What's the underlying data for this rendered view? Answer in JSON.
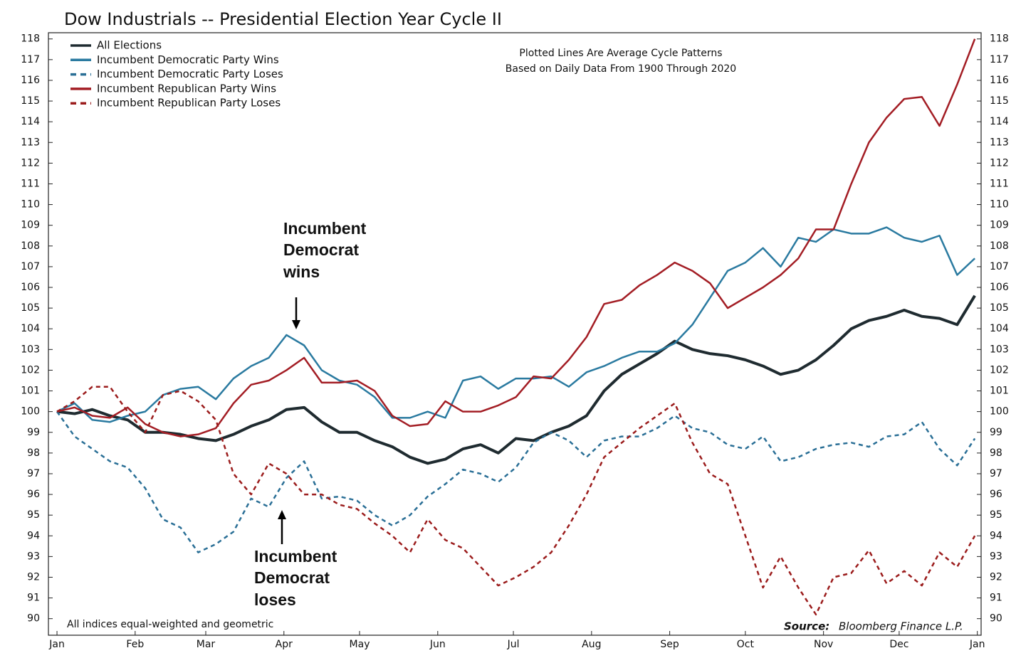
{
  "chart_data": {
    "type": "line",
    "title": "Dow Industrials -- Presidential Election Year Cycle II",
    "notes": [
      "Plotted Lines Are Average Cycle Patterns",
      "Based on Daily Data From 1900 Through 2020"
    ],
    "footnote": "All indices equal-weighted and geometric",
    "source_label": "Source:",
    "source": "Bloomberg Finance L.P.",
    "annotations": [
      {
        "lines": [
          "Incumbent",
          "Democrat",
          "wins"
        ]
      },
      {
        "lines": [
          "Incumbent",
          "Democrat",
          "loses"
        ]
      }
    ],
    "x": [
      0,
      7,
      14,
      21,
      28,
      35,
      42,
      49,
      56,
      63,
      70,
      77,
      84,
      91,
      98,
      105,
      112,
      119,
      126,
      133,
      140,
      147,
      154,
      161,
      168,
      175,
      182,
      189,
      196,
      203,
      210,
      217,
      224,
      231,
      238,
      245,
      252,
      259,
      266,
      273,
      280,
      287,
      294,
      301,
      308,
      315,
      322,
      329,
      336,
      343,
      350,
      357,
      364
    ],
    "xlim": [
      -3.4,
      366.5
    ],
    "xticks": [
      {
        "value": 0,
        "label": "Jan"
      },
      {
        "value": 31,
        "label": "Feb"
      },
      {
        "value": 59,
        "label": "Mar"
      },
      {
        "value": 90,
        "label": "Apr"
      },
      {
        "value": 120,
        "label": "May"
      },
      {
        "value": 151,
        "label": "Jun"
      },
      {
        "value": 181,
        "label": "Jul"
      },
      {
        "value": 212,
        "label": "Aug"
      },
      {
        "value": 243,
        "label": "Sep"
      },
      {
        "value": 273,
        "label": "Oct"
      },
      {
        "value": 304,
        "label": "Nov"
      },
      {
        "value": 334,
        "label": "Dec"
      },
      {
        "value": 365,
        "label": "Jan"
      }
    ],
    "ylim": [
      89.2,
      118.3
    ],
    "yticks": [
      90,
      91,
      92,
      93,
      94,
      95,
      96,
      97,
      98,
      99,
      100,
      101,
      102,
      103,
      104,
      105,
      106,
      107,
      108,
      109,
      110,
      111,
      112,
      113,
      114,
      115,
      116,
      117,
      118
    ],
    "series": [
      {
        "name": "All Elections",
        "color": "#1f2b30",
        "dashed": false,
        "width": 4,
        "values": [
          100,
          99.9,
          100.1,
          99.8,
          99.6,
          99.0,
          99.0,
          98.9,
          98.7,
          98.6,
          98.9,
          99.3,
          99.6,
          100.1,
          100.2,
          99.5,
          99.0,
          99.0,
          98.6,
          98.3,
          97.8,
          97.5,
          97.7,
          98.2,
          98.4,
          98.0,
          98.7,
          98.6,
          99.0,
          99.3,
          99.8,
          101.0,
          101.8,
          102.3,
          102.8,
          103.4,
          103.0,
          102.8,
          102.7,
          102.5,
          102.2,
          101.8,
          102.0,
          102.5,
          103.2,
          104.0,
          104.4,
          104.6,
          104.9,
          104.6,
          104.5,
          104.2,
          105.6
        ]
      },
      {
        "name": "Incumbent Democratic Party Wins",
        "color": "#2a7aa0",
        "dashed": false,
        "width": 2.5,
        "values": [
          100,
          100.4,
          99.6,
          99.5,
          99.8,
          100.0,
          100.8,
          101.1,
          101.2,
          100.6,
          101.6,
          102.2,
          102.6,
          103.7,
          103.2,
          102.0,
          101.5,
          101.3,
          100.7,
          99.7,
          99.7,
          100.0,
          99.7,
          101.5,
          101.7,
          101.1,
          101.6,
          101.6,
          101.7,
          101.2,
          101.9,
          102.2,
          102.6,
          102.9,
          102.9,
          103.3,
          104.2,
          105.5,
          106.8,
          107.2,
          107.9,
          107.0,
          108.4,
          108.2,
          108.8,
          108.6,
          108.6,
          108.9,
          108.4,
          108.2,
          108.5,
          106.6,
          107.4
        ]
      },
      {
        "name": "Incumbent Democratic Party Loses",
        "color": "#2a6f96",
        "dashed": true,
        "width": 2.5,
        "values": [
          100,
          98.8,
          98.2,
          97.6,
          97.3,
          96.3,
          94.8,
          94.4,
          93.2,
          93.6,
          94.2,
          95.8,
          95.4,
          96.8,
          97.6,
          95.8,
          95.9,
          95.7,
          95.0,
          94.5,
          95.0,
          95.9,
          96.5,
          97.2,
          97.0,
          96.6,
          97.3,
          98.5,
          99.0,
          98.6,
          97.8,
          98.6,
          98.8,
          98.8,
          99.2,
          99.8,
          99.2,
          99.0,
          98.4,
          98.2,
          98.8,
          97.6,
          97.8,
          98.2,
          98.4,
          98.5,
          98.3,
          98.8,
          98.9,
          99.5,
          98.2,
          97.4,
          98.7
        ]
      },
      {
        "name": "Incumbent Republican Party Wins",
        "color": "#a31d24",
        "dashed": false,
        "width": 2.5,
        "values": [
          100,
          100.2,
          99.8,
          99.7,
          100.2,
          99.4,
          99.0,
          98.8,
          98.9,
          99.2,
          100.4,
          101.3,
          101.5,
          102.0,
          102.6,
          101.4,
          101.4,
          101.5,
          101.0,
          99.8,
          99.3,
          99.4,
          100.5,
          100.0,
          100.0,
          100.3,
          100.7,
          101.7,
          101.6,
          102.5,
          103.6,
          105.2,
          105.4,
          106.1,
          106.6,
          107.2,
          106.8,
          106.2,
          105.0,
          105.5,
          106.0,
          106.6,
          107.4,
          108.8,
          108.8,
          111.0,
          113.0,
          114.2,
          115.1,
          115.2,
          113.8,
          115.8,
          118.0
        ]
      },
      {
        "name": "Incumbent Republican Party Loses",
        "color": "#9b1c1c",
        "dashed": true,
        "width": 2.5,
        "values": [
          100,
          100.5,
          101.2,
          101.2,
          100.0,
          99.0,
          100.8,
          101.0,
          100.5,
          99.6,
          97.0,
          96.0,
          97.5,
          97.0,
          96.0,
          96.0,
          95.5,
          95.3,
          94.6,
          94.0,
          93.2,
          94.8,
          93.8,
          93.4,
          92.5,
          91.6,
          92.0,
          92.5,
          93.2,
          94.5,
          96.0,
          97.8,
          98.5,
          99.2,
          99.8,
          100.4,
          98.5,
          97.0,
          96.5,
          94.0,
          91.5,
          93.0,
          91.5,
          90.2,
          92.0,
          92.2,
          93.3,
          91.7,
          92.3,
          91.6,
          93.2,
          92.5,
          94.0
        ]
      }
    ]
  }
}
